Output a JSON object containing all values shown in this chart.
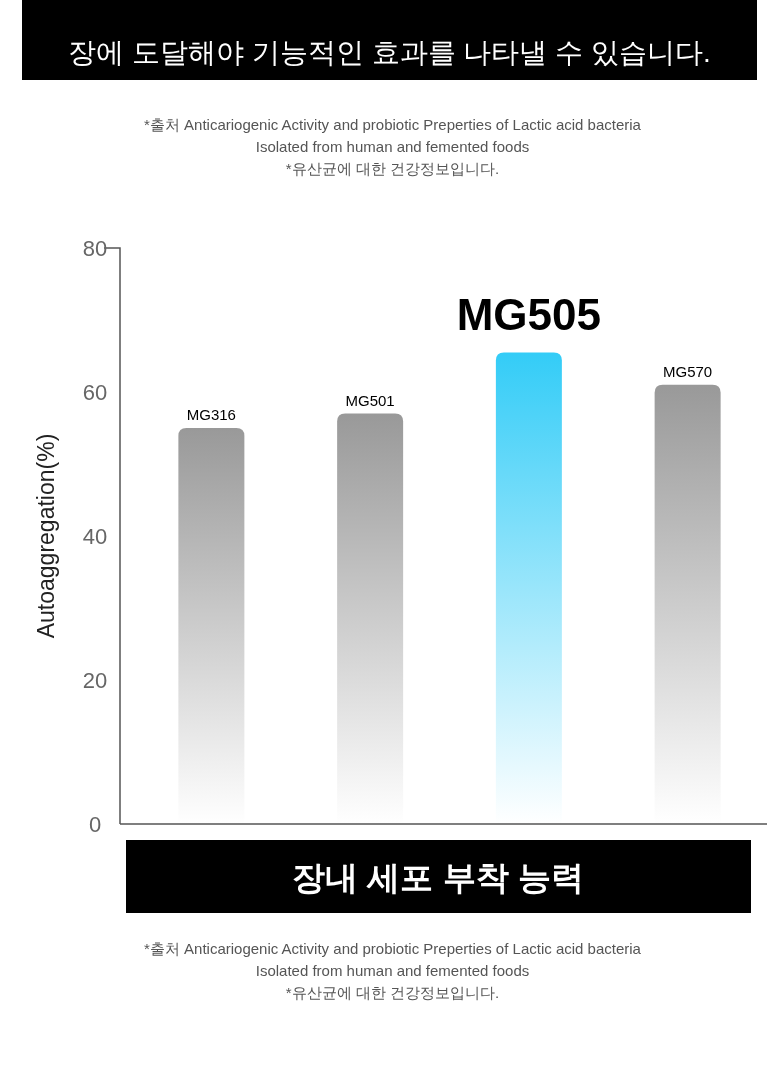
{
  "chart_data": {
    "type": "bar",
    "title": "장내 세포 부착 능력",
    "ylabel": "Autoaggregation(%)",
    "categories": [
      "MG316",
      "MG501",
      "MG505",
      "MG570"
    ],
    "values": [
      55,
      57,
      65.5,
      61
    ],
    "colors": [
      "#999999",
      "#999999",
      "#33ccf7",
      "#999999"
    ],
    "ylim": [
      0,
      80
    ],
    "yticks": [
      0,
      20,
      40,
      60,
      80
    ],
    "grid": false,
    "annotations": [
      "장에 도달해야 기능적인 효과를 나타낼 수 있습니다.",
      "*출처 Anticariogenic Activity and probiotic Preperties of Lactic acid bacteria",
      "Isolated from human and femented foods",
      "*유산균에 대한 건강정보입니다.",
      "*출처 Anticariogenic Activity and probiotic Preperties of Lactic acid bacteria",
      "Isolated from human and femented foods",
      "*유산균에 대한 건강정보입니다."
    ]
  }
}
